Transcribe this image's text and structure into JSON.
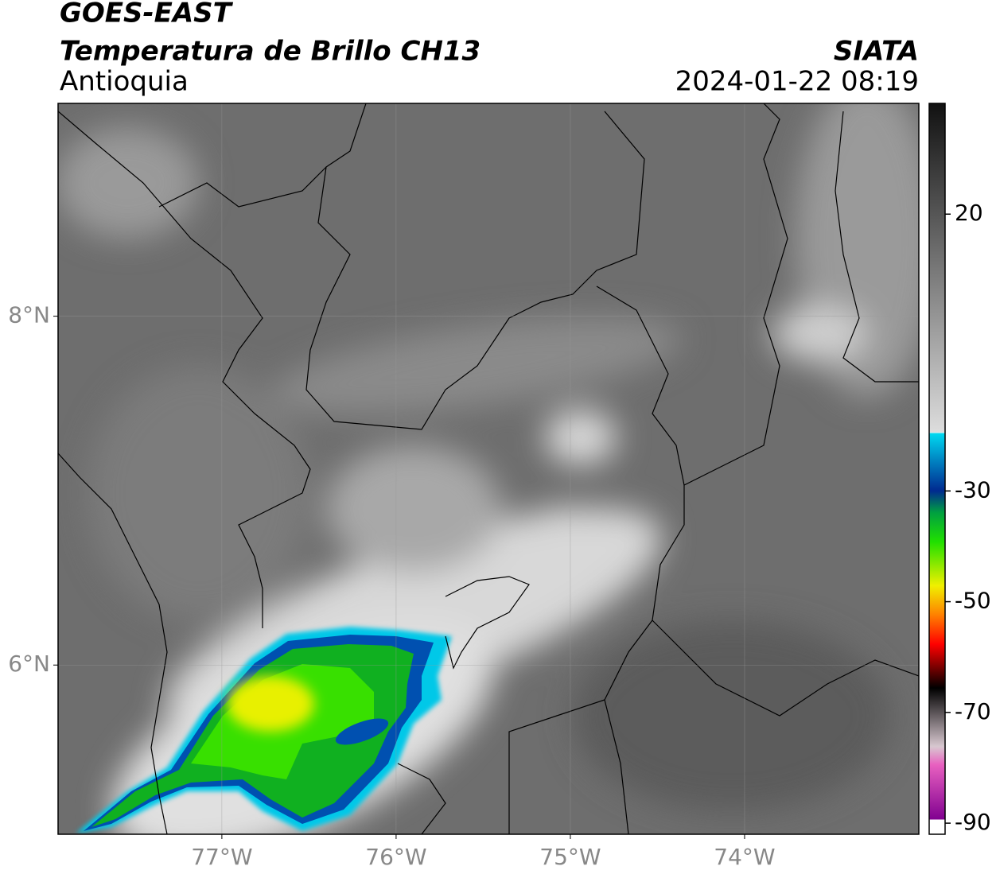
{
  "header": {
    "title": "GOES-EAST",
    "subtitle": "Temperatura de Brillo CH13",
    "region": "Antioquia",
    "source": "SIATA",
    "datetime": "2024-01-22 08:19"
  },
  "map": {
    "xlim": [
      -77.94,
      -73.0
    ],
    "ylim": [
      5.03,
      9.22
    ],
    "xticks": [
      {
        "value": -77,
        "label": "77°W"
      },
      {
        "value": -76,
        "label": "76°W"
      },
      {
        "value": -75,
        "label": "75°W"
      },
      {
        "value": -74,
        "label": "74°W"
      }
    ],
    "yticks": [
      {
        "value": 6,
        "label": "6°N"
      },
      {
        "value": 8,
        "label": "8°N"
      }
    ],
    "grid": true
  },
  "colorbar": {
    "lim": [
      -92,
      40
    ],
    "ticks": [
      20,
      -30,
      -50,
      -70,
      -90
    ]
  }
}
